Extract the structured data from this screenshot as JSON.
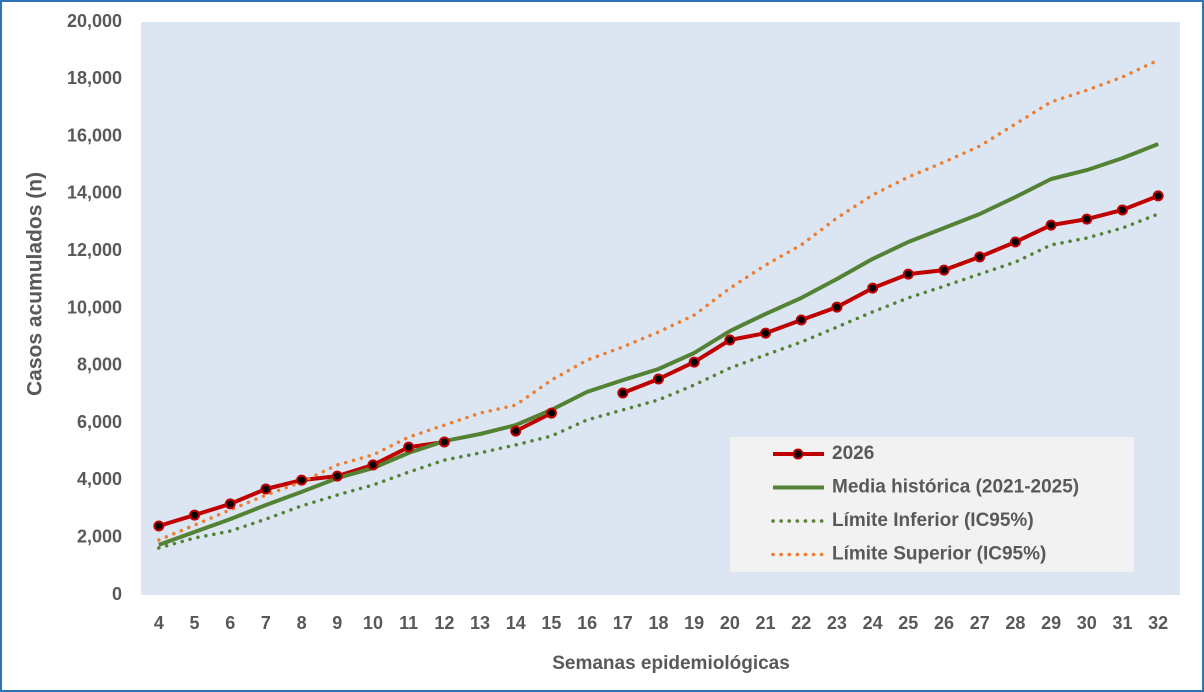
{
  "chart_data": {
    "type": "line",
    "x_label": "Semanas epidemiológicas",
    "y_label": "Casos acumulados (n)",
    "categories": [
      "4",
      "5",
      "6",
      "7",
      "8",
      "9",
      "10",
      "11",
      "12",
      "13",
      "14",
      "15",
      "16",
      "17",
      "18",
      "19",
      "20",
      "21",
      "22",
      "23",
      "24",
      "25",
      "26",
      "27",
      "28",
      "29",
      "30",
      "31",
      "32"
    ],
    "ylim": [
      0,
      20000
    ],
    "yticks": [
      {
        "value": 0,
        "label": "0"
      },
      {
        "value": 2000,
        "label": "2,000"
      },
      {
        "value": 4000,
        "label": "4,000"
      },
      {
        "value": 6000,
        "label": "6,000"
      },
      {
        "value": 8000,
        "label": "8,000"
      },
      {
        "value": 10000,
        "label": "10,000"
      },
      {
        "value": 12000,
        "label": "12,000"
      },
      {
        "value": 14000,
        "label": "14,000"
      },
      {
        "value": 16000,
        "label": "16,000"
      },
      {
        "value": 18000,
        "label": "18,000"
      },
      {
        "value": 20000,
        "label": "20,000"
      }
    ],
    "legend": "lower-right",
    "series": [
      {
        "name": "2026",
        "color": "#c00000",
        "dash": "solid",
        "markers": true,
        "values": [
          2410,
          2790,
          3180,
          3700,
          4010,
          4150,
          4540,
          5160,
          5340,
          null,
          5720,
          6350,
          null,
          7050,
          7540,
          8130,
          8900,
          9140,
          9600,
          10050,
          10710,
          11200,
          11340,
          11800,
          12320,
          12910,
          13120,
          13440,
          13930
        ]
      },
      {
        "name": "Media histórica (2021-2025)",
        "color": "#548235",
        "dash": "solid",
        "markers": false,
        "values": [
          1750,
          2200,
          2650,
          3140,
          3600,
          4080,
          4430,
          4960,
          5370,
          5620,
          5930,
          6460,
          7090,
          7500,
          7890,
          8450,
          9210,
          9810,
          10370,
          11030,
          11730,
          12320,
          12810,
          13300,
          13890,
          14520,
          14830,
          15250,
          15740
        ]
      },
      {
        "name": "Límite Inferior (IC95%)",
        "color": "#548235",
        "dash": "dotted",
        "markers": false,
        "values": [
          1640,
          1990,
          2230,
          2650,
          3110,
          3490,
          3840,
          4290,
          4710,
          4960,
          5240,
          5550,
          6110,
          6460,
          6810,
          7330,
          7920,
          8380,
          8830,
          9350,
          9880,
          10370,
          10780,
          11200,
          11620,
          12220,
          12460,
          12810,
          13300
        ]
      },
      {
        "name": "Límite Superior (IC95%)",
        "color": "#ed7d31",
        "dash": "dotted",
        "markers": false,
        "values": [
          1920,
          2440,
          2970,
          3490,
          3940,
          4540,
          4890,
          5510,
          5930,
          6350,
          6630,
          7500,
          8200,
          8660,
          9180,
          9770,
          10710,
          11520,
          12220,
          13160,
          13960,
          14590,
          15110,
          15670,
          16440,
          17210,
          17620,
          18080,
          18670
        ]
      }
    ]
  }
}
